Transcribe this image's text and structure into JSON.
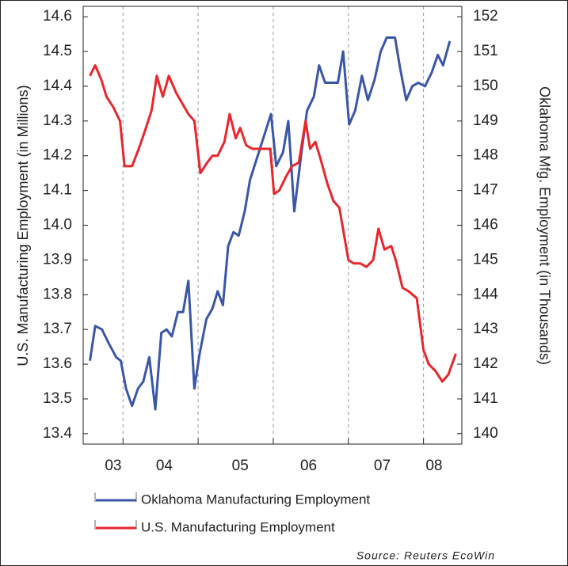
{
  "chart_data": {
    "type": "line",
    "ylabel": "U.S. Manufacturing Employment (in Millions)",
    "y2label": "Oklahoma Mfg. Employment (in Thousands)",
    "source": "Source: Reuters EcoWin",
    "xlim": [
      2003.47,
      2008.51
    ],
    "xticks": [
      {
        "value": 2003.87,
        "label": "03"
      },
      {
        "value": 2004.55,
        "label": "04"
      },
      {
        "value": 2005.56,
        "label": "05"
      },
      {
        "value": 2006.47,
        "label": "06"
      },
      {
        "value": 2007.45,
        "label": "07"
      },
      {
        "value": 2008.14,
        "label": "08"
      }
    ],
    "xgrid": [
      2004,
      2005,
      2006,
      2007,
      2008
    ],
    "ylim": [
      13.37,
      14.63
    ],
    "yticks": [
      13.4,
      13.5,
      13.6,
      13.7,
      13.8,
      13.9,
      {
        "value": 14.0,
        "label": "14.0"
      },
      14.1,
      14.2,
      14.3,
      14.4,
      14.5,
      14.6
    ],
    "y2lim": [
      139.7,
      152.3
    ],
    "y2ticks": [
      140,
      141,
      142,
      143,
      144,
      145,
      146,
      147,
      148,
      149,
      150,
      151,
      152
    ],
    "series": [
      {
        "name": "Oklahoma Manufacturing Employment",
        "color": "#3a56a8",
        "axis": "y2",
        "x": [
          2003.56,
          2003.63,
          2003.72,
          2003.81,
          2003.91,
          2003.97,
          2004.04,
          2004.12,
          2004.2,
          2004.27,
          2004.35,
          2004.43,
          2004.51,
          2004.58,
          2004.65,
          2004.73,
          2004.8,
          2004.87,
          2004.95,
          2005.02,
          2005.11,
          2005.19,
          2005.26,
          2005.33,
          2005.4,
          2005.47,
          2005.54,
          2005.62,
          2005.69,
          2005.97,
          2006.04,
          2006.13,
          2006.2,
          2006.28,
          2006.37,
          2006.45,
          2006.54,
          2006.61,
          2006.69,
          2006.78,
          2006.86,
          2006.93,
          2007.01,
          2007.09,
          2007.18,
          2007.26,
          2007.35,
          2007.43,
          2007.51,
          2007.62,
          2007.69,
          2007.77,
          2007.85,
          2007.93,
          2008.02,
          2008.11,
          2008.19,
          2008.26,
          2008.35
        ],
        "values": [
          142.1,
          143.1,
          143.0,
          142.6,
          142.2,
          142.1,
          141.3,
          140.8,
          141.3,
          141.5,
          142.2,
          140.7,
          142.9,
          143.0,
          142.8,
          143.5,
          143.5,
          144.4,
          141.3,
          142.3,
          143.3,
          143.6,
          144.1,
          143.7,
          145.4,
          145.8,
          145.7,
          146.4,
          147.3,
          149.2,
          147.7,
          148.1,
          149.0,
          146.4,
          148.0,
          149.3,
          149.7,
          150.6,
          150.1,
          150.1,
          150.1,
          151.0,
          148.9,
          149.3,
          150.3,
          149.6,
          150.2,
          151.0,
          151.4,
          151.4,
          150.5,
          149.6,
          150.0,
          150.1,
          150.0,
          150.4,
          150.9,
          150.6,
          151.3
        ]
      },
      {
        "name": "U.S. Manufacturing Employment",
        "color": "#e8262b",
        "axis": "y",
        "x": [
          2003.56,
          2003.63,
          2003.71,
          2003.78,
          2003.87,
          2003.96,
          2004.02,
          2004.12,
          2004.21,
          2004.29,
          2004.38,
          2004.45,
          2004.53,
          2004.61,
          2004.71,
          2004.79,
          2004.87,
          2004.95,
          2005.03,
          2005.12,
          2005.19,
          2005.26,
          2005.35,
          2005.42,
          2005.5,
          2005.56,
          2005.64,
          2005.72,
          2005.87,
          2005.96,
          2006.01,
          2006.08,
          2006.17,
          2006.25,
          2006.34,
          2006.43,
          2006.49,
          2006.56,
          2006.63,
          2006.72,
          2006.8,
          2006.88,
          2007.0,
          2007.07,
          2007.16,
          2007.24,
          2007.33,
          2007.4,
          2007.48,
          2007.57,
          2007.63,
          2007.72,
          2007.8,
          2007.91,
          2008.0,
          2008.07,
          2008.16,
          2008.25,
          2008.33,
          2008.43
        ],
        "values": [
          14.43,
          14.46,
          14.42,
          14.37,
          14.34,
          14.3,
          14.17,
          14.17,
          14.22,
          14.27,
          14.33,
          14.43,
          14.37,
          14.43,
          14.38,
          14.35,
          14.32,
          14.3,
          14.15,
          14.18,
          14.2,
          14.2,
          14.24,
          14.32,
          14.25,
          14.28,
          14.23,
          14.22,
          14.22,
          14.22,
          14.09,
          14.1,
          14.14,
          14.17,
          14.18,
          14.3,
          14.22,
          14.24,
          14.19,
          14.12,
          14.07,
          14.05,
          13.9,
          13.89,
          13.89,
          13.88,
          13.9,
          13.99,
          13.93,
          13.94,
          13.9,
          13.82,
          13.81,
          13.79,
          13.64,
          13.6,
          13.58,
          13.55,
          13.57,
          13.63
        ]
      }
    ]
  }
}
